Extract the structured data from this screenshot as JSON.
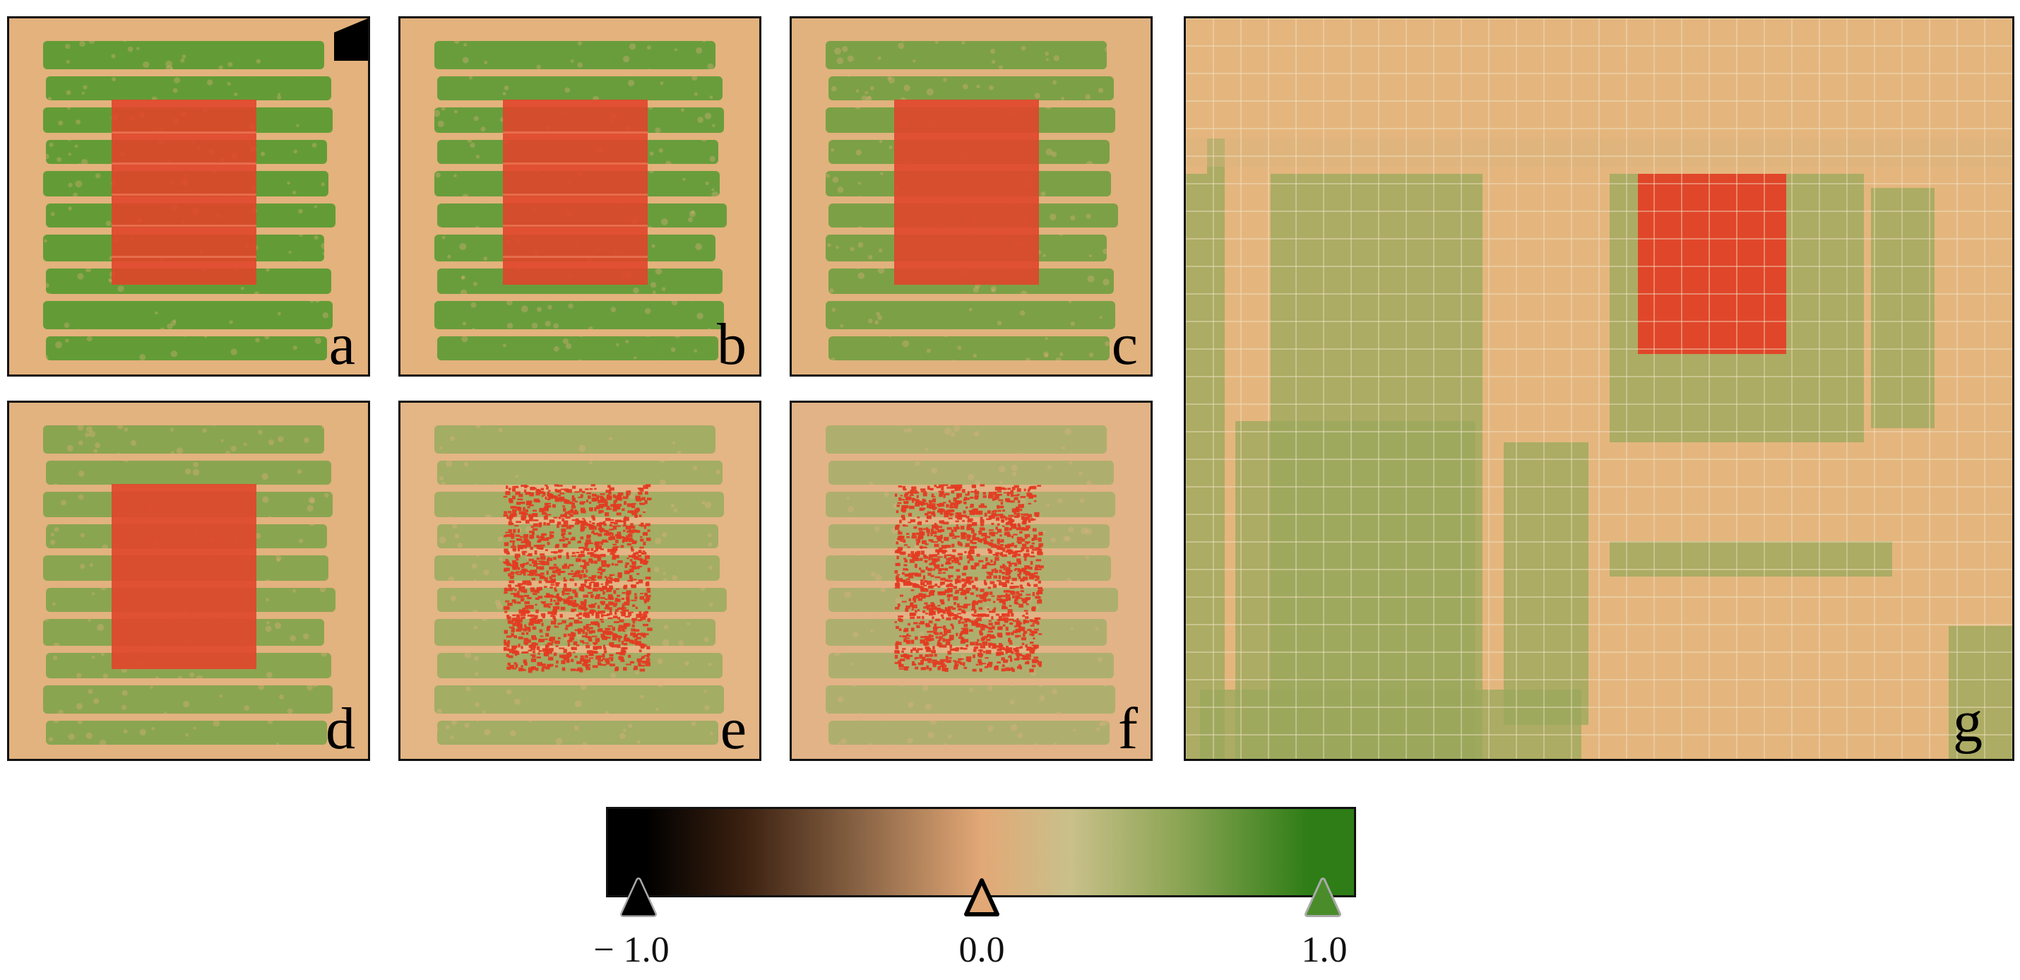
{
  "panels": [
    {
      "label": "a",
      "vegetation_cover": "dense",
      "red_pattern": "solid"
    },
    {
      "label": "b",
      "vegetation_cover": "dense",
      "red_pattern": "solid"
    },
    {
      "label": "c",
      "vegetation_cover": "dense",
      "red_pattern": "solid"
    },
    {
      "label": "d",
      "vegetation_cover": "moderate",
      "red_pattern": "solid"
    },
    {
      "label": "e",
      "vegetation_cover": "sparse",
      "red_pattern": "speckled"
    },
    {
      "label": "f",
      "vegetation_cover": "sparse",
      "red_pattern": "speckled"
    },
    {
      "label": "g",
      "vegetation_cover": "coarse-grid",
      "red_pattern": "solid"
    }
  ],
  "colorbar": {
    "ticks": [
      "− 1.0",
      "0.0",
      "1.0"
    ],
    "colors": {
      "low": "#000000",
      "mid": "#e2a876",
      "high": "#2e7d16"
    }
  },
  "colors": {
    "soil": "#e6b883",
    "vegetation": "#5f9a34",
    "overlay_red": "#e0452a",
    "border": "#111111"
  }
}
